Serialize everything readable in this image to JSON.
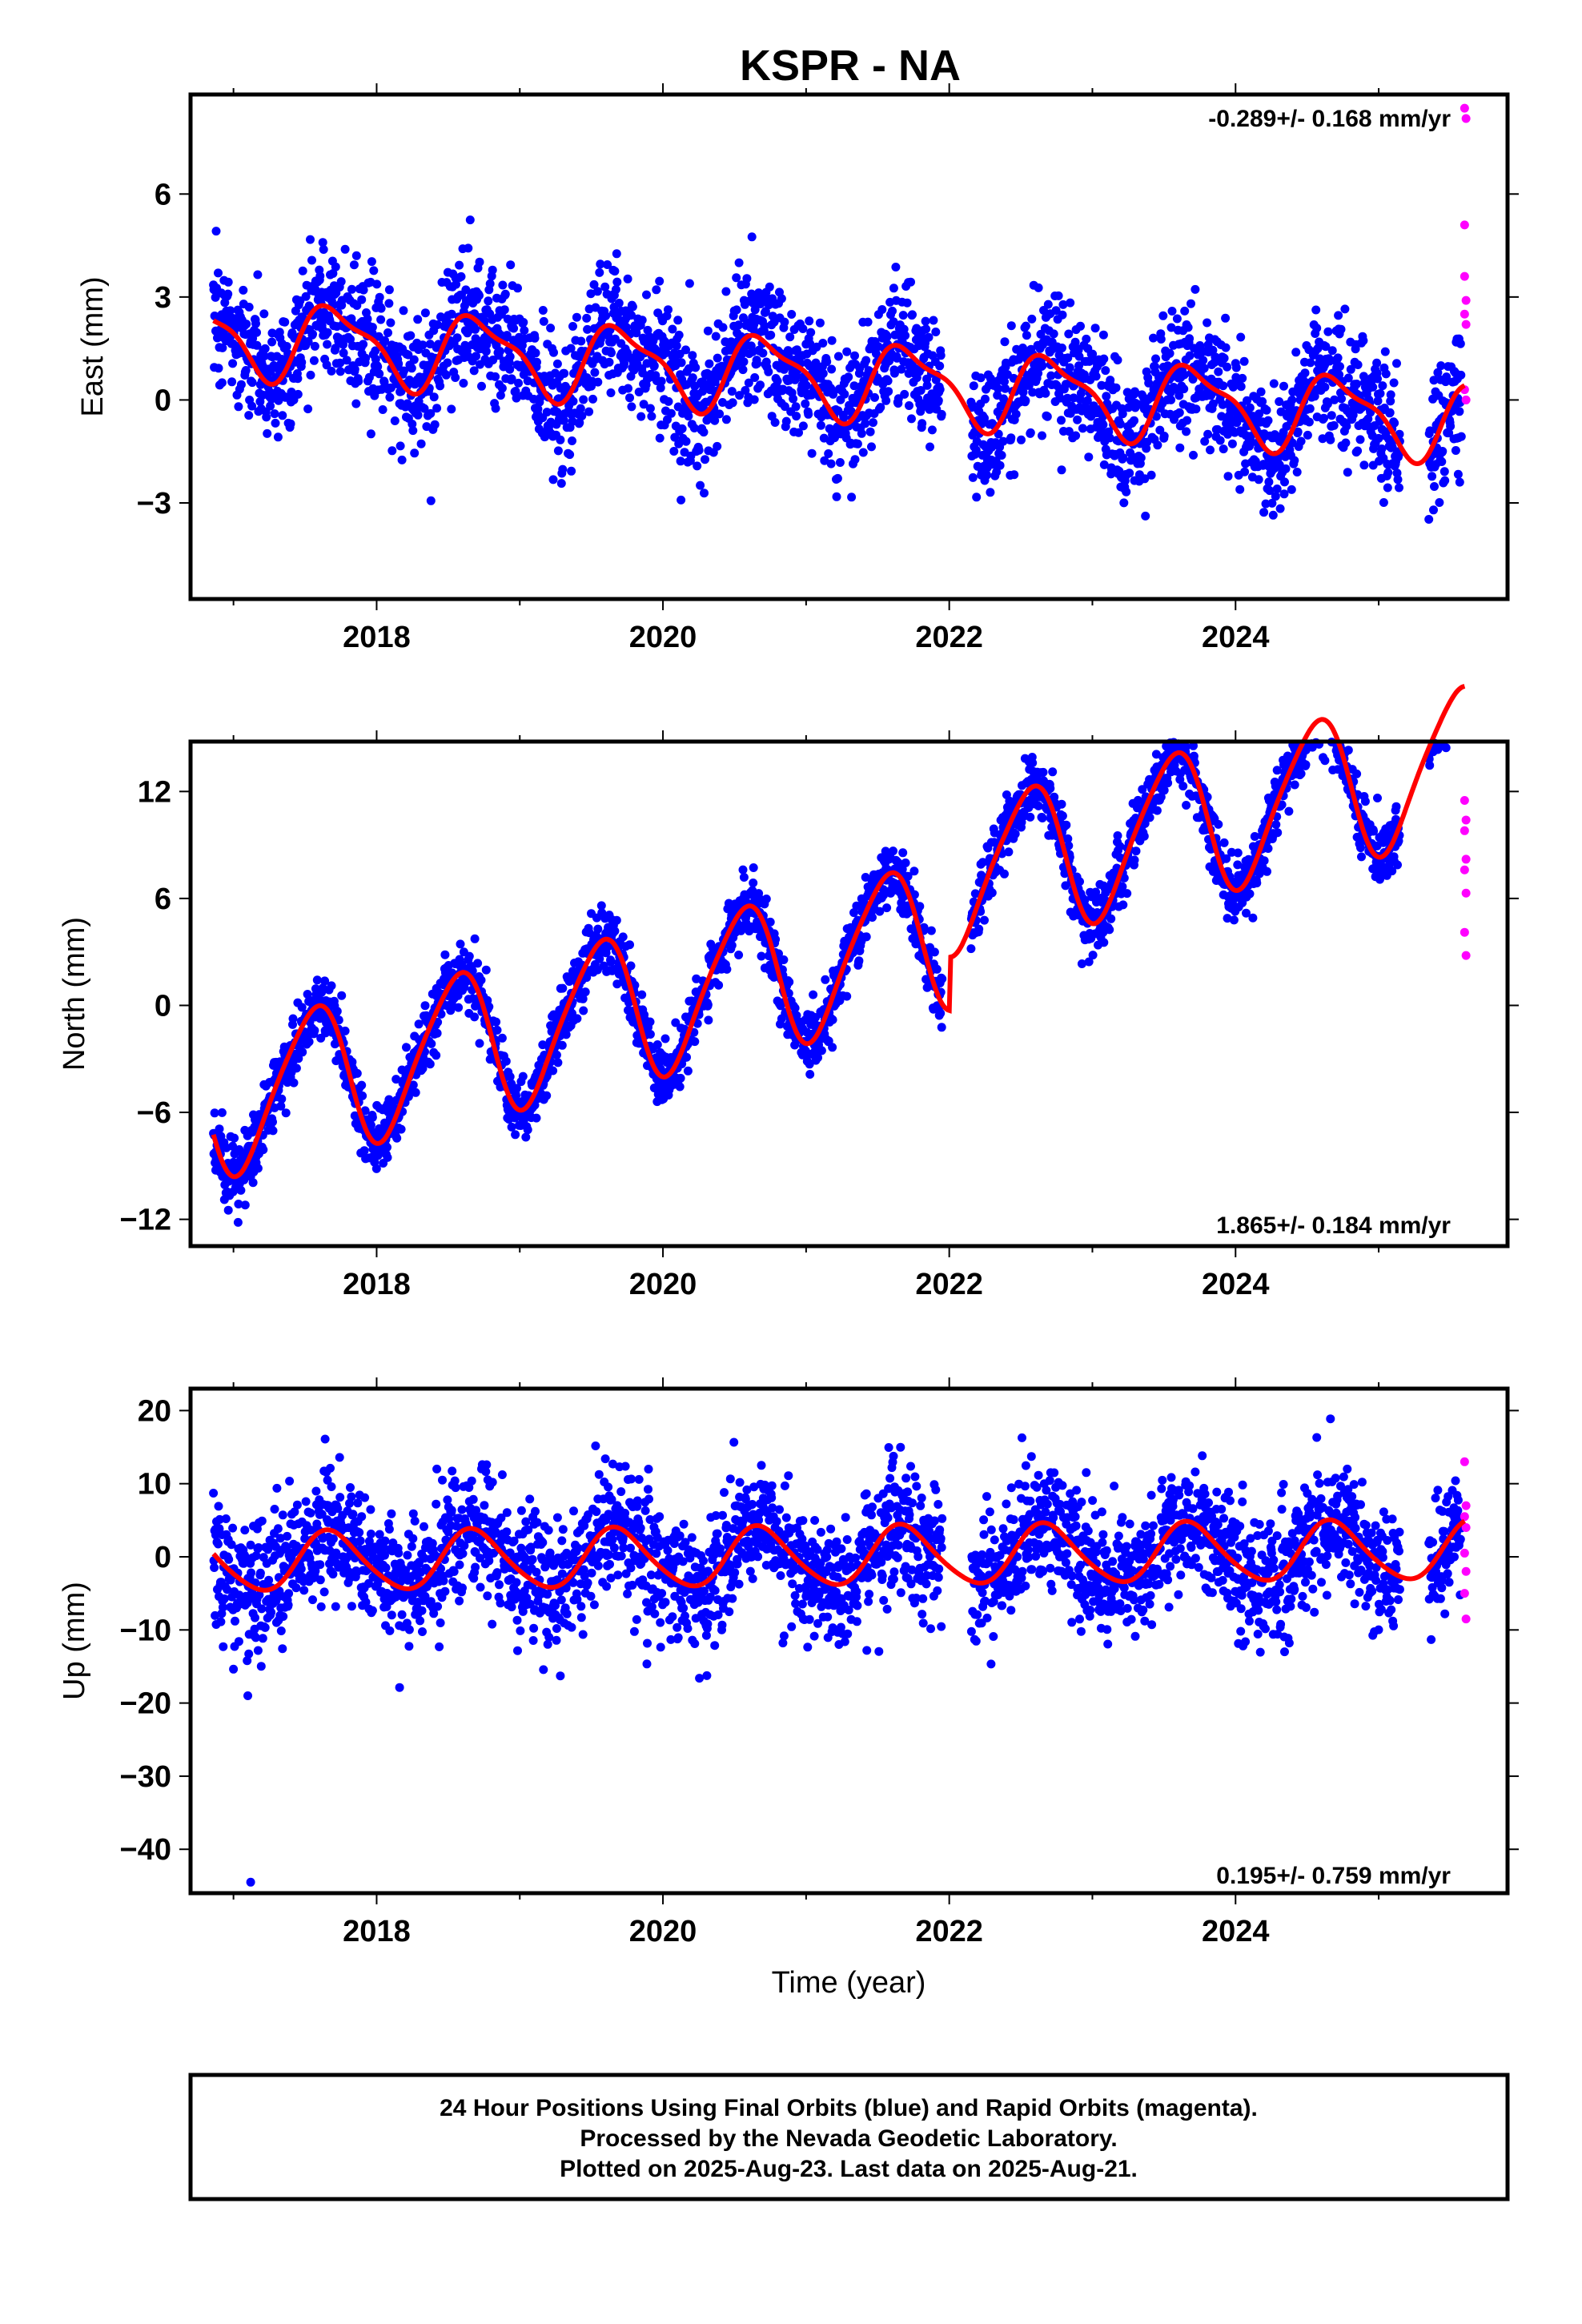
{
  "title": "KSPR - NA",
  "colors": {
    "final": "#0000ff",
    "rapid": "#ff00ff",
    "model": "#ff0000",
    "frame": "#000000",
    "background": "#ffffff"
  },
  "chart_data": [
    {
      "type": "scatter",
      "component": "east",
      "ylabel": "East (mm)",
      "xlabel": "",
      "xlim": [
        2016.7,
        2025.9
      ],
      "ylim": [
        -5.8,
        8.9
      ],
      "x_ticks": [
        "2018",
        "2020",
        "2022",
        "2024"
      ],
      "y_ticks": [
        "6",
        "3",
        "0",
        "-3"
      ],
      "rate_text": "-0.289+/- 0.168 mm/yr",
      "rate_position": "top-right",
      "trend": {
        "rate": -0.289,
        "offset_at_2016.85": 1.9
      },
      "seasonal": {
        "annual_amplitude": 1.05,
        "annual_peak": 0.72,
        "semiannual_amplitude": 0.35,
        "semiannual_peak": 0.05
      },
      "offsets": [],
      "scatter_sigma": 0.95,
      "gaps": [
        [
          2021.95,
          2022.15
        ],
        [
          2025.15,
          2025.35
        ]
      ],
      "rapid": [
        {
          "x": 2025.6,
          "y": 8.5
        },
        {
          "x": 2025.61,
          "y": 8.2
        },
        {
          "x": 2025.6,
          "y": 5.1
        },
        {
          "x": 2025.6,
          "y": 3.6
        },
        {
          "x": 2025.61,
          "y": 2.9
        },
        {
          "x": 2025.6,
          "y": 2.5
        },
        {
          "x": 2025.61,
          "y": 2.2
        },
        {
          "x": 2025.6,
          "y": 0.3
        },
        {
          "x": 2025.61,
          "y": 0.0
        }
      ],
      "series": [
        {
          "name": "Final Orbits (blue)",
          "role": "final"
        },
        {
          "name": "Rapid Orbits (magenta)",
          "role": "rapid"
        }
      ]
    },
    {
      "type": "scatter",
      "component": "north",
      "ylabel": "North (mm)",
      "xlabel": "",
      "xlim": [
        2016.7,
        2025.9
      ],
      "ylim": [
        -13.5,
        14.8
      ],
      "x_ticks": [
        "2018",
        "2020",
        "2022",
        "2024"
      ],
      "y_ticks": [
        "12",
        "6",
        "0",
        "-6",
        "-12"
      ],
      "rate_text": "1.865+/- 0.184 mm/yr",
      "rate_position": "bottom-right",
      "trend": {
        "rate": 1.865,
        "offset_at_2016.85": -5.5
      },
      "seasonal": {
        "annual_amplitude": 4.1,
        "annual_peak": 0.55,
        "semiannual_amplitude": 0.6,
        "semiannual_peak": 0.2
      },
      "offsets": [
        {
          "x": 2022.0,
          "dy": 3.0
        }
      ],
      "scatter_sigma": 0.9,
      "gaps": [
        [
          2021.95,
          2022.15
        ],
        [
          2025.15,
          2025.35
        ]
      ],
      "rapid": [
        {
          "x": 2025.6,
          "y": 11.5
        },
        {
          "x": 2025.61,
          "y": 10.4
        },
        {
          "x": 2025.6,
          "y": 9.8
        },
        {
          "x": 2025.61,
          "y": 8.2
        },
        {
          "x": 2025.6,
          "y": 7.6
        },
        {
          "x": 2025.61,
          "y": 6.3
        },
        {
          "x": 2025.6,
          "y": 4.1
        },
        {
          "x": 2025.61,
          "y": 2.8
        }
      ],
      "series": [
        {
          "name": "Final Orbits (blue)",
          "role": "final"
        },
        {
          "name": "Rapid Orbits (magenta)",
          "role": "rapid"
        }
      ]
    },
    {
      "type": "scatter",
      "component": "up",
      "ylabel": "Up (mm)",
      "xlabel": "Time (year)",
      "xlim": [
        2016.7,
        2025.9
      ],
      "ylim": [
        -46.0,
        23.0
      ],
      "x_ticks": [
        "2018",
        "2020",
        "2022",
        "2024"
      ],
      "y_ticks": [
        "20",
        "10",
        "0",
        "-10",
        "-20",
        "-30",
        "-40"
      ],
      "rate_text": "0.195+/- 0.759 mm/yr",
      "rate_position": "bottom-right",
      "trend": {
        "rate": 0.195,
        "offset_at_2016.85": -0.8
      },
      "seasonal": {
        "annual_amplitude": 4.0,
        "annual_peak": 0.68,
        "semiannual_amplitude": 0.5,
        "semiannual_peak": 0.1
      },
      "offsets": [],
      "scatter_sigma": 4.3,
      "gaps": [
        [
          2021.95,
          2022.15
        ],
        [
          2025.15,
          2025.35
        ]
      ],
      "outliers": [
        {
          "x": 2017.12,
          "y": -44.5
        },
        {
          "x": 2017.1,
          "y": -19.0
        }
      ],
      "rapid": [
        {
          "x": 2025.6,
          "y": 13.0
        },
        {
          "x": 2025.61,
          "y": 7.0
        },
        {
          "x": 2025.6,
          "y": 5.5
        },
        {
          "x": 2025.61,
          "y": 4.0
        },
        {
          "x": 2025.6,
          "y": 0.5
        },
        {
          "x": 2025.61,
          "y": -2.0
        },
        {
          "x": 2025.6,
          "y": -5.0
        },
        {
          "x": 2025.61,
          "y": -8.5
        }
      ],
      "series": [
        {
          "name": "Final Orbits (blue)",
          "role": "final"
        },
        {
          "name": "Rapid Orbits (magenta)",
          "role": "rapid"
        }
      ]
    }
  ],
  "caption": {
    "line1": "24 Hour Positions Using Final Orbits (blue) and Rapid Orbits (magenta).",
    "line2": "Processed by the Nevada Geodetic Laboratory.",
    "line3": "Plotted on 2025-Aug-23. Last data on 2025-Aug-21."
  }
}
